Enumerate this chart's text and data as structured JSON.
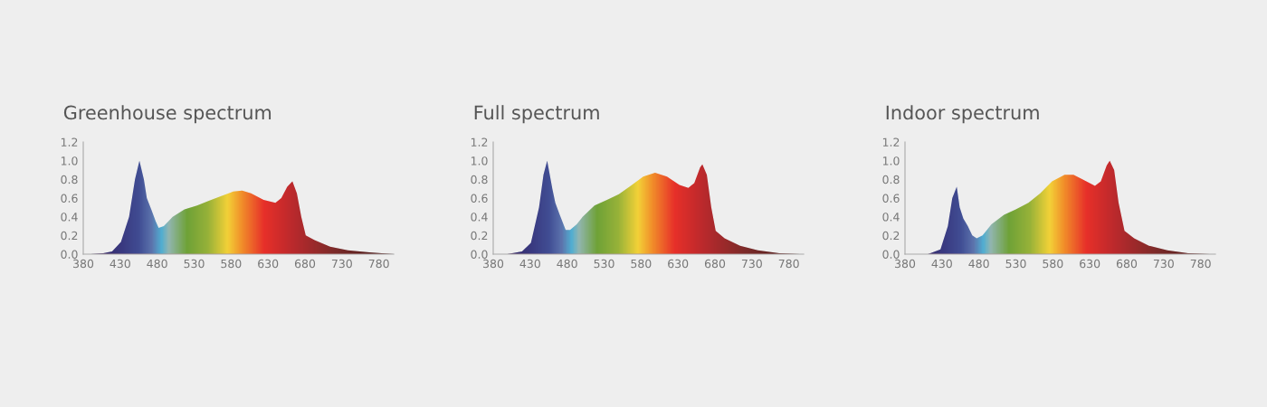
{
  "chart_data": [
    {
      "type": "area",
      "title": "Greenhouse spectrum",
      "xlim": [
        380,
        800
      ],
      "ylim": [
        0,
        1.2
      ],
      "xticks": [
        380,
        430,
        480,
        530,
        580,
        630,
        680,
        730,
        780
      ],
      "yticks": [
        {
          "value": 0,
          "label": "0.0"
        },
        {
          "value": 0.2,
          "label": "0.2"
        },
        {
          "value": 0.4,
          "label": "0.4"
        },
        {
          "value": 0.6,
          "label": "0.6"
        },
        {
          "value": 0.8,
          "label": "0.8"
        },
        {
          "value": 1,
          "label": "1.0"
        },
        {
          "value": 1.2,
          "label": "1.2"
        }
      ],
      "grid": false,
      "legend": false,
      "series": [
        {
          "x": [
            390,
            407,
            419,
            431,
            442,
            450,
            456,
            462,
            466,
            472,
            478,
            482,
            489,
            501,
            517,
            534,
            550,
            566,
            583,
            595,
            607,
            624,
            640,
            648,
            656,
            663,
            669,
            675,
            681,
            693,
            714,
            738,
            767,
            800
          ],
          "values": [
            0,
            0.01,
            0.03,
            0.13,
            0.4,
            0.8,
            1.0,
            0.8,
            0.6,
            0.48,
            0.35,
            0.28,
            0.3,
            0.4,
            0.48,
            0.52,
            0.57,
            0.62,
            0.67,
            0.68,
            0.65,
            0.58,
            0.55,
            0.6,
            0.72,
            0.78,
            0.65,
            0.4,
            0.2,
            0.15,
            0.08,
            0.04,
            0.02,
            0
          ]
        }
      ]
    },
    {
      "type": "area",
      "title": "Full spectrum",
      "xlim": [
        380,
        800
      ],
      "ylim": [
        0,
        1.2
      ],
      "xticks": [
        380,
        430,
        480,
        530,
        580,
        630,
        680,
        730,
        780
      ],
      "yticks": [
        {
          "value": 0,
          "label": "0.0"
        },
        {
          "value": 0.2,
          "label": "0.2"
        },
        {
          "value": 0.4,
          "label": "0.4"
        },
        {
          "value": 0.6,
          "label": "0.6"
        },
        {
          "value": 0.8,
          "label": "0.8"
        },
        {
          "value": 1,
          "label": "1.0"
        },
        {
          "value": 1.2,
          "label": "1.2"
        }
      ],
      "grid": false,
      "legend": false,
      "series": [
        {
          "x": [
            399,
            419,
            431,
            442,
            448,
            453,
            460,
            464,
            470,
            478,
            484,
            493,
            501,
            517,
            534,
            550,
            566,
            583,
            599,
            615,
            632,
            644,
            652,
            660,
            663,
            669,
            675,
            681,
            693,
            714,
            738,
            767,
            795
          ],
          "values": [
            0,
            0.03,
            0.12,
            0.5,
            0.85,
            1.0,
            0.7,
            0.55,
            0.42,
            0.26,
            0.26,
            0.32,
            0.4,
            0.52,
            0.58,
            0.64,
            0.73,
            0.83,
            0.87,
            0.83,
            0.74,
            0.71,
            0.76,
            0.93,
            0.96,
            0.85,
            0.5,
            0.25,
            0.17,
            0.09,
            0.04,
            0.01,
            0
          ]
        }
      ]
    },
    {
      "type": "area",
      "title": "Indoor spectrum",
      "xlim": [
        380,
        800
      ],
      "ylim": [
        0,
        1.2
      ],
      "xticks": [
        380,
        430,
        480,
        530,
        580,
        630,
        680,
        730,
        780
      ],
      "yticks": [
        {
          "value": 0,
          "label": "0.0"
        },
        {
          "value": 0.2,
          "label": "0.2"
        },
        {
          "value": 0.4,
          "label": "0.4"
        },
        {
          "value": 0.6,
          "label": "0.6"
        },
        {
          "value": 0.8,
          "label": "0.8"
        },
        {
          "value": 1,
          "label": "1.0"
        },
        {
          "value": 1.2,
          "label": "1.2"
        }
      ],
      "grid": false,
      "legend": false,
      "series": [
        {
          "x": [
            411,
            428,
            438,
            444,
            450,
            454,
            459,
            465,
            471,
            477,
            485,
            497,
            514,
            530,
            547,
            563,
            579,
            596,
            608,
            620,
            637,
            645,
            653,
            657,
            663,
            669,
            677,
            690,
            710,
            735,
            763,
            792
          ],
          "values": [
            0,
            0.05,
            0.3,
            0.6,
            0.72,
            0.5,
            0.38,
            0.3,
            0.2,
            0.17,
            0.2,
            0.32,
            0.42,
            0.48,
            0.55,
            0.65,
            0.78,
            0.85,
            0.85,
            0.8,
            0.73,
            0.78,
            0.95,
            1.0,
            0.9,
            0.55,
            0.25,
            0.17,
            0.09,
            0.04,
            0.01,
            0
          ]
        }
      ]
    }
  ]
}
